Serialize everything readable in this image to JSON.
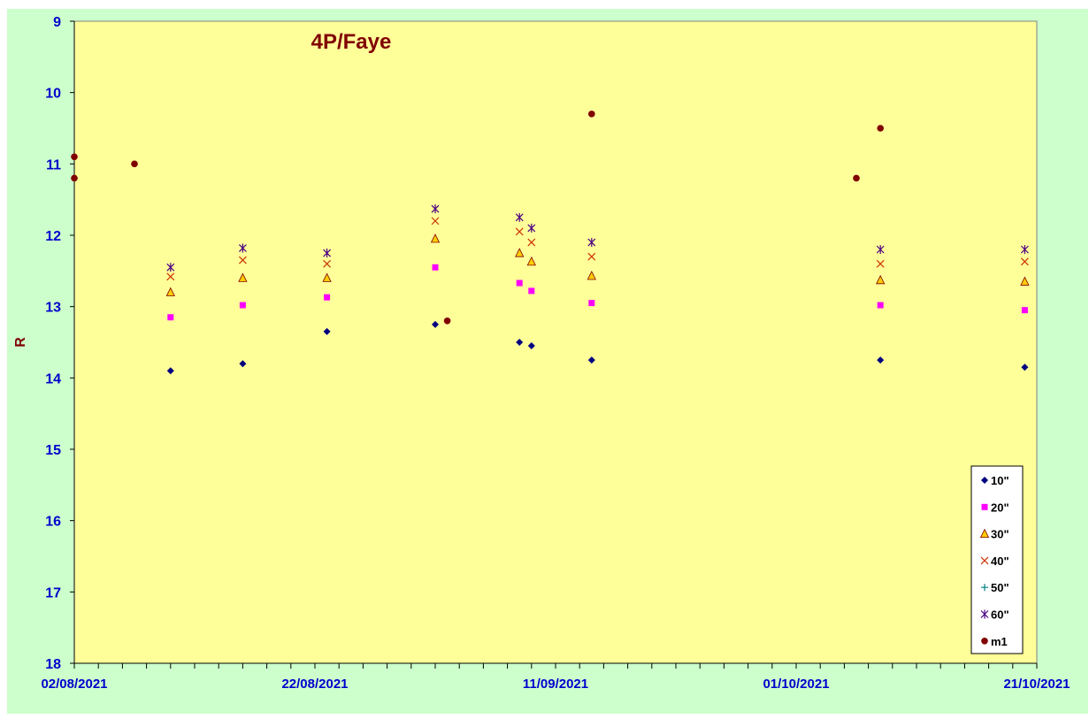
{
  "chart_data": {
    "type": "scatter",
    "title": "4P/Faye",
    "xlabel": "",
    "ylabel": "R",
    "ylim": [
      18,
      9
    ],
    "y_reversed": true,
    "y_ticks": [
      9,
      10,
      11,
      12,
      13,
      14,
      15,
      16,
      17,
      18
    ],
    "xlim": [
      "2021-08-02",
      "2021-10-21"
    ],
    "x_tick_labels": [
      "02/08/2021",
      "22/08/2021",
      "11/09/2021",
      "01/10/2021",
      "21/10/2021"
    ],
    "x_tick_dates": [
      "2021-08-02",
      "2021-08-22",
      "2021-09-11",
      "2021-10-01",
      "2021-10-21"
    ],
    "minor_tick_interval_days": 2,
    "grid": false,
    "legend_position": "bottom-right",
    "plot_background": "#ffff99",
    "outer_background": "#ccffcc",
    "series": [
      {
        "name": "10\"",
        "marker": "diamond",
        "color": "#000080",
        "points": [
          [
            "2021-08-10",
            13.9
          ],
          [
            "2021-08-16",
            13.8
          ],
          [
            "2021-08-23",
            13.35
          ],
          [
            "2021-09-01",
            13.25
          ],
          [
            "2021-09-08",
            13.5
          ],
          [
            "2021-09-09",
            13.55
          ],
          [
            "2021-09-14",
            13.75
          ],
          [
            "2021-10-08",
            13.75
          ],
          [
            "2021-10-20",
            13.85
          ]
        ]
      },
      {
        "name": "20\"",
        "marker": "square",
        "color": "#ff00ff",
        "points": [
          [
            "2021-08-10",
            13.15
          ],
          [
            "2021-08-16",
            12.98
          ],
          [
            "2021-08-23",
            12.87
          ],
          [
            "2021-09-01",
            12.45
          ],
          [
            "2021-09-08",
            12.67
          ],
          [
            "2021-09-09",
            12.78
          ],
          [
            "2021-09-14",
            12.95
          ],
          [
            "2021-10-08",
            12.98
          ],
          [
            "2021-10-20",
            13.05
          ]
        ]
      },
      {
        "name": "30\"",
        "marker": "triangle",
        "color": "#ffcc00",
        "stroke": "#800000",
        "points": [
          [
            "2021-08-10",
            12.8
          ],
          [
            "2021-08-16",
            12.6
          ],
          [
            "2021-08-23",
            12.6
          ],
          [
            "2021-09-01",
            12.05
          ],
          [
            "2021-09-08",
            12.25
          ],
          [
            "2021-09-09",
            12.37
          ],
          [
            "2021-09-14",
            12.57
          ],
          [
            "2021-10-08",
            12.63
          ],
          [
            "2021-10-20",
            12.65
          ]
        ]
      },
      {
        "name": "40\"",
        "marker": "x",
        "color": "#cc3300",
        "points": [
          [
            "2021-08-10",
            12.58
          ],
          [
            "2021-08-16",
            12.35
          ],
          [
            "2021-08-23",
            12.4
          ],
          [
            "2021-09-01",
            11.8
          ],
          [
            "2021-09-08",
            11.95
          ],
          [
            "2021-09-09",
            12.1
          ],
          [
            "2021-09-14",
            12.3
          ],
          [
            "2021-10-08",
            12.4
          ],
          [
            "2021-10-20",
            12.37
          ]
        ]
      },
      {
        "name": "50\"",
        "marker": "plus",
        "color": "#008080",
        "points": []
      },
      {
        "name": "60\"",
        "marker": "asterisk",
        "color": "#4b0082",
        "points": [
          [
            "2021-08-10",
            12.45
          ],
          [
            "2021-08-16",
            12.18
          ],
          [
            "2021-08-23",
            12.25
          ],
          [
            "2021-09-01",
            11.63
          ],
          [
            "2021-09-08",
            11.75
          ],
          [
            "2021-09-09",
            11.9
          ],
          [
            "2021-09-14",
            12.1
          ],
          [
            "2021-10-08",
            12.2
          ],
          [
            "2021-10-20",
            12.2
          ]
        ]
      },
      {
        "name": "m1",
        "marker": "circle",
        "color": "#800000",
        "points": [
          [
            "2021-08-02",
            10.9
          ],
          [
            "2021-08-02",
            11.2
          ],
          [
            "2021-08-07",
            11.0
          ],
          [
            "2021-09-02",
            13.2
          ],
          [
            "2021-09-14",
            10.3
          ],
          [
            "2021-10-06",
            11.2
          ],
          [
            "2021-10-08",
            10.5
          ]
        ]
      }
    ]
  }
}
